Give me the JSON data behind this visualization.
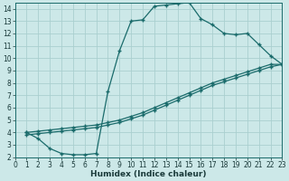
{
  "xlabel": "Humidex (Indice chaleur)",
  "bg_color": "#cce8e8",
  "grid_color": "#aacfcf",
  "line_color": "#1a6b6b",
  "xlim": [
    0,
    23
  ],
  "ylim": [
    2,
    14.5
  ],
  "xticks": [
    0,
    1,
    2,
    3,
    4,
    5,
    6,
    7,
    8,
    9,
    10,
    11,
    12,
    13,
    14,
    15,
    16,
    17,
    18,
    19,
    20,
    21,
    22,
    23
  ],
  "yticks": [
    2,
    3,
    4,
    5,
    6,
    7,
    8,
    9,
    10,
    11,
    12,
    13,
    14
  ],
  "curve1_x": [
    1,
    2,
    3,
    4,
    5,
    6,
    7,
    8,
    9,
    10,
    11,
    12,
    13,
    14,
    15,
    16,
    17,
    18,
    19,
    20,
    21,
    22,
    23
  ],
  "curve1_y": [
    4.0,
    3.5,
    2.7,
    2.3,
    2.2,
    2.2,
    2.3,
    7.3,
    10.6,
    13.0,
    13.1,
    14.2,
    14.3,
    14.4,
    14.5,
    13.2,
    12.7,
    12.0,
    11.9,
    12.0,
    11.1,
    10.2,
    9.5
  ],
  "curve2_x": [
    1,
    2,
    3,
    4,
    5,
    6,
    7,
    8,
    9,
    10,
    11,
    12,
    13,
    14,
    15,
    16,
    17,
    18,
    19,
    20,
    21,
    22,
    23
  ],
  "curve2_y": [
    4.0,
    4.1,
    4.2,
    4.3,
    4.4,
    4.5,
    4.6,
    4.8,
    5.0,
    5.3,
    5.6,
    6.0,
    6.4,
    6.8,
    7.2,
    7.6,
    8.0,
    8.3,
    8.6,
    8.9,
    9.2,
    9.5,
    9.5
  ],
  "curve3_x": [
    1,
    2,
    3,
    4,
    5,
    6,
    7,
    8,
    9,
    10,
    11,
    12,
    13,
    14,
    15,
    16,
    17,
    18,
    19,
    20,
    21,
    22,
    23
  ],
  "curve3_y": [
    3.8,
    3.9,
    4.0,
    4.1,
    4.2,
    4.3,
    4.4,
    4.6,
    4.8,
    5.1,
    5.4,
    5.8,
    6.2,
    6.6,
    7.0,
    7.4,
    7.8,
    8.1,
    8.4,
    8.7,
    9.0,
    9.3,
    9.5
  ]
}
